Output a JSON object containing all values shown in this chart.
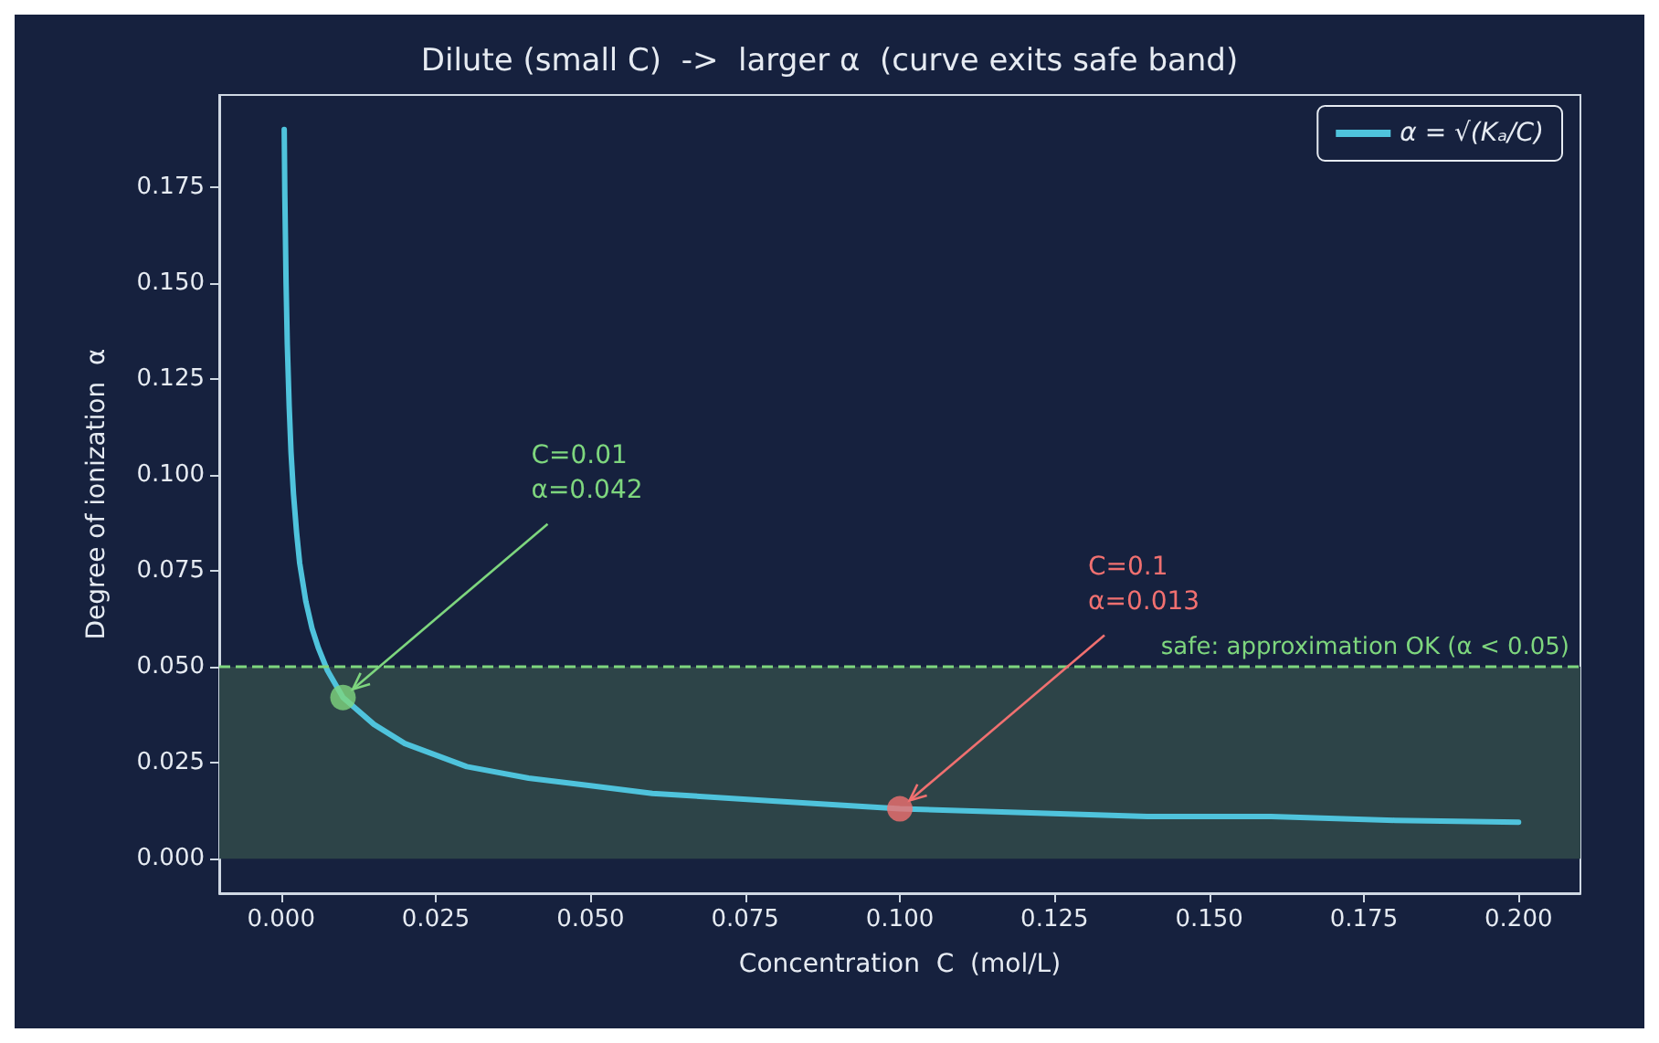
{
  "chart_data": {
    "type": "line",
    "title": "Dilute (small C)  ->  larger α  (curve exits safe band)",
    "xlabel": "Concentration  C  (mol/L)",
    "ylabel": "Degree of ionization  α",
    "series": [
      {
        "name": "α = √(Kₐ/C)",
        "color": "#4fc3dc",
        "x": [
          0.0005,
          0.0006,
          0.0008,
          0.001,
          0.0013,
          0.0016,
          0.002,
          0.0025,
          0.003,
          0.004,
          0.005,
          0.006,
          0.0075,
          0.01,
          0.015,
          0.02,
          0.03,
          0.04,
          0.05,
          0.06,
          0.08,
          0.1,
          0.12,
          0.14,
          0.16,
          0.18,
          0.2
        ],
        "values": [
          0.19,
          0.173,
          0.15,
          0.134,
          0.118,
          0.106,
          0.095,
          0.085,
          0.077,
          0.067,
          0.06,
          0.055,
          0.049,
          0.042,
          0.035,
          0.03,
          0.024,
          0.021,
          0.019,
          0.017,
          0.015,
          0.013,
          0.012,
          0.011,
          0.011,
          0.01,
          0.0095
        ]
      },
      {
        "type": "scatter",
        "colors": [
          "#7ed67e",
          "#f07070"
        ],
        "x": [
          0.01,
          0.1
        ],
        "values": [
          0.042,
          0.013
        ]
      }
    ],
    "annotations": [
      {
        "text": "C=0.01\nα=0.042",
        "x": 0.01,
        "y": 0.042
      },
      {
        "text": "C=0.1\nα=0.013",
        "x": 0.1,
        "y": 0.013
      }
    ],
    "ref_lines": [
      {
        "axis": "y",
        "value": 0.05,
        "label": "safe: approximation OK (α < 0.05)",
        "color": "#7ed67e",
        "line_style": "dashed"
      }
    ],
    "bands": [
      {
        "axis": "y",
        "from": 0,
        "to": 0.05,
        "color": "#2d4448"
      }
    ],
    "xlim": [
      -0.01,
      0.21
    ],
    "xticks": [
      {
        "value": 0,
        "label": "0.000"
      },
      0.025,
      {
        "value": 0.05,
        "label": "0.050"
      },
      0.075,
      {
        "value": 0.1,
        "label": "0.100"
      },
      0.125,
      {
        "value": 0.15,
        "label": "0.150"
      },
      0.175,
      {
        "value": 0.2,
        "label": "0.200"
      }
    ],
    "ylim": [
      -0.009,
      0.199
    ],
    "yticks": [
      {
        "value": 0,
        "label": "0.000"
      },
      0.025,
      {
        "value": 0.05,
        "label": "0.050"
      },
      0.075,
      {
        "value": 0.1,
        "label": "0.100"
      },
      0.125,
      {
        "value": 0.15,
        "label": "0.150"
      },
      0.175
    ],
    "grid": false,
    "legend": "top right",
    "line_style": "solid"
  }
}
